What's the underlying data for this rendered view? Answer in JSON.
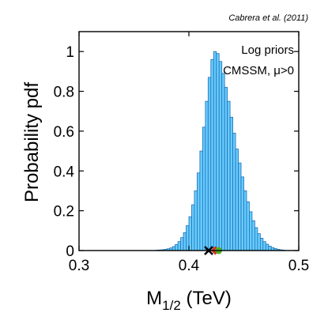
{
  "figure": {
    "credit": "Cabrera et al. (2011)",
    "annotations": [
      "Log priors",
      "CMSSM, μ>0"
    ]
  },
  "chart_data": {
    "type": "bar",
    "title": "",
    "xlabel": "M",
    "xlabel_subscript": "1/2",
    "xlabel_unit": " (TeV)",
    "ylabel": "Probability pdf",
    "xlim": [
      0.3,
      0.5
    ],
    "ylim": [
      0,
      1.1
    ],
    "xticks": [
      0.3,
      0.4,
      0.5
    ],
    "xtick_labels": [
      "0.3",
      "0.4",
      "0.5"
    ],
    "yticks": [
      0,
      0.2,
      0.4,
      0.6,
      0.8,
      1
    ],
    "ytick_labels": [
      "0",
      "0.2",
      "0.4",
      "0.6",
      "0.8",
      "1"
    ],
    "grid": false,
    "bar_color": "#66ccff",
    "bar_edge_color": "#1f6fb5",
    "bin_width": 0.0025,
    "bin_centers": [
      0.37125,
      0.37375,
      0.37625,
      0.37875,
      0.38125,
      0.38375,
      0.38625,
      0.38875,
      0.39125,
      0.39375,
      0.39625,
      0.39875,
      0.40125,
      0.40375,
      0.40625,
      0.40875,
      0.41125,
      0.41375,
      0.41625,
      0.41875,
      0.42125,
      0.42375,
      0.42625,
      0.42875,
      0.43125,
      0.43375,
      0.43625,
      0.43875,
      0.44125,
      0.44375,
      0.44625,
      0.44875,
      0.45125,
      0.45375,
      0.45625,
      0.45875,
      0.46125,
      0.46375,
      0.46625,
      0.46875,
      0.47125,
      0.47375,
      0.47625,
      0.47875,
      0.48125,
      0.48375,
      0.48625
    ],
    "values": [
      0.002,
      0.003,
      0.004,
      0.006,
      0.009,
      0.013,
      0.02,
      0.03,
      0.045,
      0.065,
      0.09,
      0.125,
      0.17,
      0.23,
      0.3,
      0.39,
      0.5,
      0.62,
      0.75,
      0.87,
      0.96,
      1.0,
      0.99,
      0.95,
      0.89,
      0.82,
      0.75,
      0.67,
      0.59,
      0.51,
      0.44,
      0.37,
      0.3,
      0.245,
      0.195,
      0.15,
      0.115,
      0.085,
      0.062,
      0.045,
      0.032,
      0.022,
      0.015,
      0.01,
      0.006,
      0.004,
      0.002
    ],
    "markers": [
      {
        "name": "cross",
        "x": 0.418,
        "y": 0,
        "color": "#000000"
      },
      {
        "name": "diamond",
        "x": 0.424,
        "y": 0,
        "color": "#e8231e"
      },
      {
        "name": "circle",
        "x": 0.427,
        "y": 0,
        "color": "#4caf20"
      }
    ]
  }
}
